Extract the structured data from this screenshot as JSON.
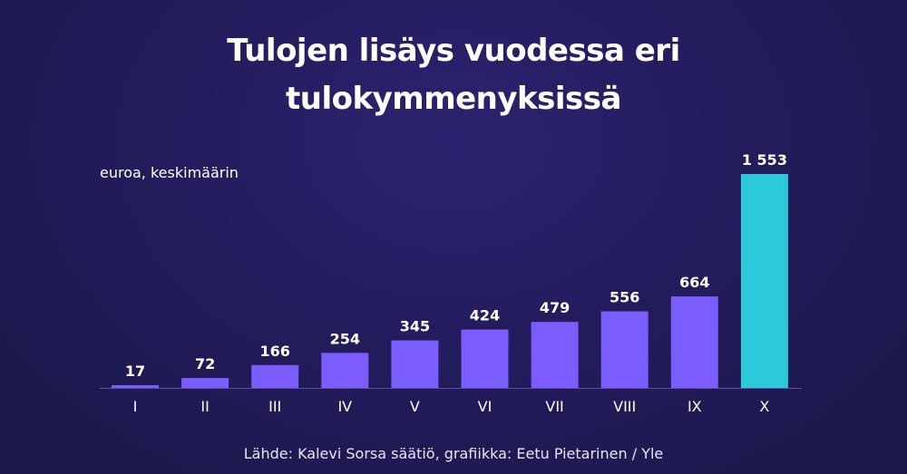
{
  "chart_data": {
    "type": "bar",
    "title_lines": [
      "Tulojen lisäys vuodessa eri",
      "tulokymmenyksissä"
    ],
    "unit_label": "euroa, keskimäärin",
    "categories": [
      "I",
      "II",
      "III",
      "IV",
      "V",
      "VI",
      "VII",
      "VIII",
      "IX",
      "X"
    ],
    "values": [
      17,
      72,
      166,
      254,
      345,
      424,
      479,
      556,
      664,
      1553
    ],
    "value_labels": [
      "17",
      "72",
      "166",
      "254",
      "345",
      "424",
      "479",
      "556",
      "664",
      "1 553"
    ],
    "ylim": [
      0,
      1553
    ],
    "colors": {
      "bar": "#7b5cff",
      "highlight_bar": "#2bcadb",
      "baseline": "#5a52a8"
    },
    "highlight_index": 9,
    "grid": false
  },
  "source": "Lähde: Kalevi Sorsa säätiö, grafiikka: Eetu Pietarinen / Yle"
}
